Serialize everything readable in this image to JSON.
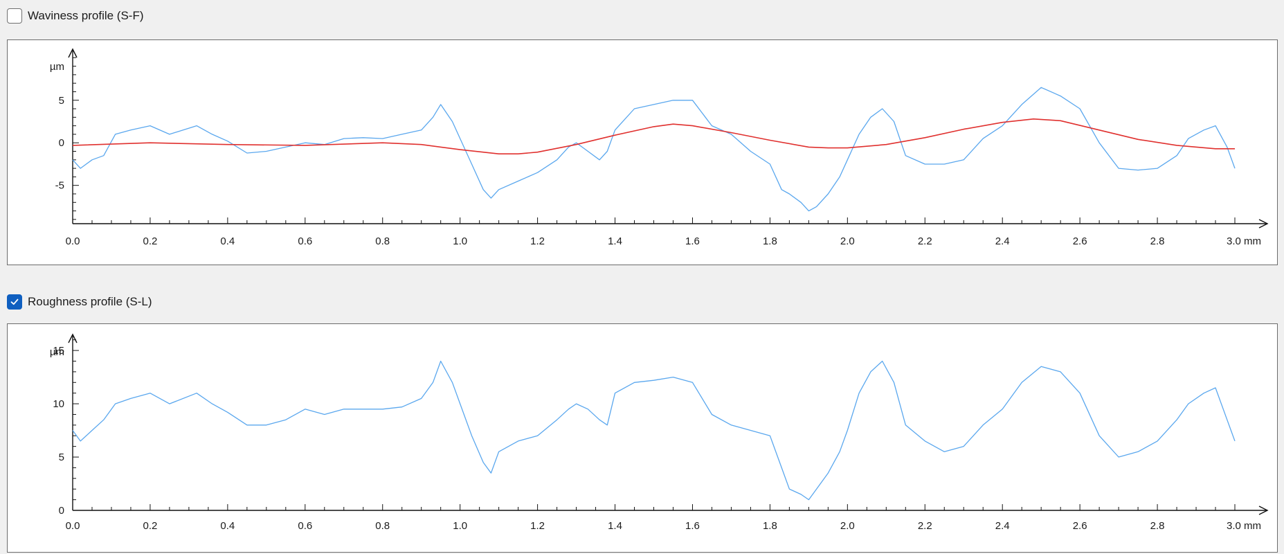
{
  "waviness": {
    "label": "Waviness profile (S-F)",
    "checked": false
  },
  "roughness": {
    "label": "Roughness profile (S-L)",
    "checked": true
  },
  "chart_data": [
    {
      "type": "line",
      "xlabel": "mm",
      "ylabel": "µm",
      "xlim": [
        0,
        3.0
      ],
      "ylim": [
        -9.5,
        11
      ],
      "xticks": [
        0.0,
        0.2,
        0.4,
        0.6,
        0.8,
        1.0,
        1.2,
        1.4,
        1.6,
        1.8,
        2.0,
        2.2,
        2.4,
        2.6,
        2.8,
        3.0
      ],
      "xtick_labels": [
        "0.0",
        "0.2",
        "0.4",
        "0.6",
        "0.8",
        "1.0",
        "1.2",
        "1.4",
        "1.6",
        "1.8",
        "2.0",
        "2.2",
        "2.4",
        "2.6",
        "2.8",
        "3.0 mm"
      ],
      "yticks": [
        -5,
        0,
        5
      ],
      "ytick_labels": [
        "-5",
        "0",
        "5"
      ],
      "grid": false,
      "series": [
        {
          "color": "#5aa7ee",
          "x": [
            0.0,
            0.02,
            0.05,
            0.08,
            0.11,
            0.15,
            0.2,
            0.25,
            0.32,
            0.36,
            0.4,
            0.45,
            0.5,
            0.55,
            0.6,
            0.65,
            0.7,
            0.75,
            0.8,
            0.85,
            0.9,
            0.93,
            0.95,
            0.98,
            1.0,
            1.03,
            1.06,
            1.08,
            1.1,
            1.15,
            1.2,
            1.25,
            1.28,
            1.3,
            1.33,
            1.36,
            1.38,
            1.4,
            1.45,
            1.5,
            1.55,
            1.6,
            1.65,
            1.7,
            1.75,
            1.8,
            1.83,
            1.85,
            1.88,
            1.9,
            1.92,
            1.95,
            1.98,
            2.0,
            2.03,
            2.06,
            2.09,
            2.12,
            2.15,
            2.2,
            2.25,
            2.3,
            2.35,
            2.4,
            2.45,
            2.5,
            2.55,
            2.6,
            2.65,
            2.7,
            2.75,
            2.8,
            2.85,
            2.88,
            2.92,
            2.95,
            2.98,
            3.0
          ],
          "y": [
            -2.0,
            -3.0,
            -2.0,
            -1.5,
            1.0,
            1.5,
            2.0,
            1.0,
            2.0,
            1.0,
            0.2,
            -1.2,
            -1.0,
            -0.5,
            0.0,
            -0.2,
            0.5,
            0.6,
            0.5,
            1.0,
            1.5,
            3.0,
            4.5,
            2.5,
            0.5,
            -2.5,
            -5.5,
            -6.5,
            -5.5,
            -4.5,
            -3.5,
            -2.0,
            -0.5,
            0.0,
            -1.0,
            -2.0,
            -1.0,
            1.5,
            4.0,
            4.5,
            5.0,
            5.0,
            2.0,
            1.0,
            -1.0,
            -2.5,
            -5.5,
            -6.0,
            -7.0,
            -8.0,
            -7.5,
            -6.0,
            -4.0,
            -2.0,
            1.0,
            3.0,
            4.0,
            2.5,
            -1.5,
            -2.5,
            -2.5,
            -2.0,
            0.5,
            2.0,
            4.5,
            6.5,
            5.5,
            4.0,
            0.0,
            -3.0,
            -3.2,
            -3.0,
            -1.5,
            0.5,
            1.5,
            2.0,
            -0.5,
            -3.0
          ]
        },
        {
          "color": "#e0302e",
          "x": [
            0.0,
            0.2,
            0.4,
            0.6,
            0.8,
            0.9,
            1.0,
            1.1,
            1.15,
            1.2,
            1.3,
            1.4,
            1.5,
            1.55,
            1.6,
            1.7,
            1.8,
            1.9,
            1.95,
            2.0,
            2.1,
            2.2,
            2.3,
            2.4,
            2.48,
            2.55,
            2.65,
            2.75,
            2.85,
            2.95,
            3.0
          ],
          "y": [
            -0.3,
            0.0,
            -0.2,
            -0.3,
            0.0,
            -0.2,
            -0.8,
            -1.3,
            -1.3,
            -1.1,
            -0.2,
            0.9,
            1.9,
            2.2,
            2.0,
            1.2,
            0.3,
            -0.5,
            -0.6,
            -0.6,
            -0.2,
            0.6,
            1.6,
            2.4,
            2.8,
            2.6,
            1.5,
            0.4,
            -0.3,
            -0.7,
            -0.7
          ]
        }
      ]
    },
    {
      "type": "line",
      "xlabel": "mm",
      "ylabel": "µm",
      "xlim": [
        0,
        3.0
      ],
      "ylim": [
        0,
        16.5
      ],
      "xticks": [
        0.0,
        0.2,
        0.4,
        0.6,
        0.8,
        1.0,
        1.2,
        1.4,
        1.6,
        1.8,
        2.0,
        2.2,
        2.4,
        2.6,
        2.8,
        3.0
      ],
      "xtick_labels": [
        "0.0",
        "0.2",
        "0.4",
        "0.6",
        "0.8",
        "1.0",
        "1.2",
        "1.4",
        "1.6",
        "1.8",
        "2.0",
        "2.2",
        "2.4",
        "2.6",
        "2.8",
        "3.0 mm"
      ],
      "yticks": [
        0,
        5,
        10,
        15
      ],
      "ytick_labels": [
        "0",
        "5",
        "10",
        "15"
      ],
      "grid": false,
      "series": [
        {
          "color": "#5aa7ee",
          "x": [
            0.0,
            0.02,
            0.05,
            0.08,
            0.11,
            0.15,
            0.2,
            0.25,
            0.32,
            0.36,
            0.4,
            0.45,
            0.5,
            0.55,
            0.6,
            0.65,
            0.7,
            0.75,
            0.8,
            0.85,
            0.9,
            0.93,
            0.95,
            0.98,
            1.0,
            1.03,
            1.06,
            1.08,
            1.1,
            1.15,
            1.2,
            1.25,
            1.28,
            1.3,
            1.33,
            1.36,
            1.38,
            1.4,
            1.45,
            1.5,
            1.55,
            1.6,
            1.65,
            1.7,
            1.75,
            1.8,
            1.83,
            1.85,
            1.88,
            1.9,
            1.92,
            1.95,
            1.98,
            2.0,
            2.03,
            2.06,
            2.09,
            2.12,
            2.15,
            2.2,
            2.25,
            2.3,
            2.35,
            2.4,
            2.45,
            2.5,
            2.55,
            2.6,
            2.65,
            2.7,
            2.75,
            2.8,
            2.85,
            2.88,
            2.92,
            2.95,
            2.98,
            3.0
          ],
          "y": [
            7.5,
            6.5,
            7.5,
            8.5,
            10.0,
            10.5,
            11.0,
            10.0,
            11.0,
            10.0,
            9.2,
            8.0,
            8.0,
            8.5,
            9.5,
            9.0,
            9.5,
            9.5,
            9.5,
            9.7,
            10.5,
            12.0,
            14.0,
            12.0,
            10.0,
            7.0,
            4.5,
            3.5,
            5.5,
            6.5,
            7.0,
            8.5,
            9.5,
            10.0,
            9.5,
            8.5,
            8.0,
            11.0,
            12.0,
            12.2,
            12.5,
            12.0,
            9.0,
            8.0,
            7.5,
            7.0,
            4.0,
            2.0,
            1.5,
            1.0,
            2.0,
            3.5,
            5.5,
            7.5,
            11.0,
            13.0,
            14.0,
            12.0,
            8.0,
            6.5,
            5.5,
            6.0,
            8.0,
            9.5,
            12.0,
            13.5,
            13.0,
            11.0,
            7.0,
            5.0,
            5.5,
            6.5,
            8.5,
            10.0,
            11.0,
            11.5,
            8.5,
            6.5
          ]
        }
      ]
    }
  ]
}
